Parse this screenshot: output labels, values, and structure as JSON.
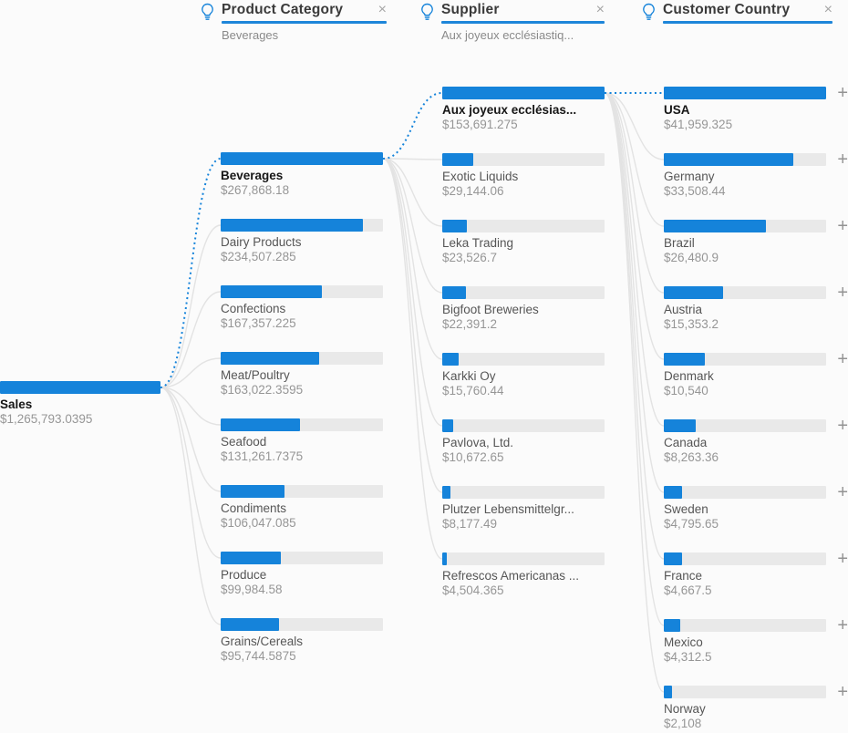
{
  "colors": {
    "accent": "#1583da",
    "bar_track": "#e9e9e9",
    "underline": "#1e86d9",
    "connector_gray": "#e3e3e3"
  },
  "icons": {
    "close": "×",
    "expand": "+",
    "lightbulb": "lightbulb-icon"
  },
  "header": {
    "filters": [
      {
        "label": "Product Category",
        "selected_value": "Beverages"
      },
      {
        "label": "Supplier",
        "selected_value": "Aux joyeux ecclésiastiq..."
      },
      {
        "label": "Customer Country",
        "selected_value": ""
      }
    ]
  },
  "chart_data": {
    "type": "bar",
    "subtype": "decomposition-tree",
    "measure": "Sales",
    "root": {
      "label": "Sales",
      "value": 1265793.0395,
      "display": "$1,265,793.0395",
      "selected": true
    },
    "levels": [
      {
        "field": "Product Category",
        "expandable": false,
        "nodes": [
          {
            "label": "Beverages",
            "value": 267868.18,
            "display": "$267,868.18",
            "selected": true
          },
          {
            "label": "Dairy Products",
            "value": 234507.285,
            "display": "$234,507.285"
          },
          {
            "label": "Confections",
            "value": 167357.225,
            "display": "$167,357.225"
          },
          {
            "label": "Meat/Poultry",
            "value": 163022.3595,
            "display": "$163,022.3595"
          },
          {
            "label": "Seafood",
            "value": 131261.7375,
            "display": "$131,261.7375"
          },
          {
            "label": "Condiments",
            "value": 106047.085,
            "display": "$106,047.085"
          },
          {
            "label": "Produce",
            "value": 99984.58,
            "display": "$99,984.58"
          },
          {
            "label": "Grains/Cereals",
            "value": 95744.5875,
            "display": "$95,744.5875"
          }
        ]
      },
      {
        "field": "Supplier",
        "expandable": false,
        "nodes": [
          {
            "label": "Aux joyeux ecclésias...",
            "value": 153691.275,
            "display": "$153,691.275",
            "selected": true
          },
          {
            "label": "Exotic Liquids",
            "value": 29144.06,
            "display": "$29,144.06"
          },
          {
            "label": "Leka Trading",
            "value": 23526.7,
            "display": "$23,526.7"
          },
          {
            "label": "Bigfoot Breweries",
            "value": 22391.2,
            "display": "$22,391.2"
          },
          {
            "label": "Karkki Oy",
            "value": 15760.44,
            "display": "$15,760.44"
          },
          {
            "label": "Pavlova, Ltd.",
            "value": 10672.65,
            "display": "$10,672.65"
          },
          {
            "label": "Plutzer Lebensmittelgr...",
            "value": 8177.49,
            "display": "$8,177.49"
          },
          {
            "label": "Refrescos Americanas ...",
            "value": 4504.365,
            "display": "$4,504.365"
          }
        ]
      },
      {
        "field": "Customer Country",
        "expandable": true,
        "nodes": [
          {
            "label": "USA",
            "value": 41959.325,
            "display": "$41,959.325",
            "selected": true
          },
          {
            "label": "Germany",
            "value": 33508.44,
            "display": "$33,508.44"
          },
          {
            "label": "Brazil",
            "value": 26480.9,
            "display": "$26,480.9"
          },
          {
            "label": "Austria",
            "value": 15353.2,
            "display": "$15,353.2"
          },
          {
            "label": "Denmark",
            "value": 10540,
            "display": "$10,540"
          },
          {
            "label": "Canada",
            "value": 8263.36,
            "display": "$8,263.36"
          },
          {
            "label": "Sweden",
            "value": 4795.65,
            "display": "$4,795.65"
          },
          {
            "label": "France",
            "value": 4667.5,
            "display": "$4,667.5"
          },
          {
            "label": "Mexico",
            "value": 4312.5,
            "display": "$4,312.5"
          },
          {
            "label": "Norway",
            "value": 2108,
            "display": "$2,108"
          }
        ]
      }
    ]
  }
}
